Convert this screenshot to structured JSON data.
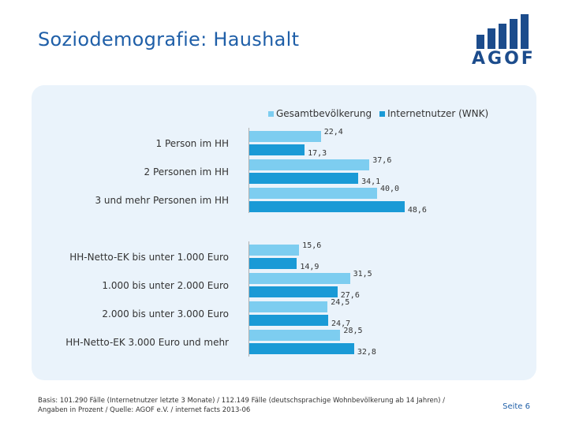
{
  "slide": {
    "title": "Soziodemografie: Haushalt",
    "logo_text": "AGOF",
    "footer": "Basis: 101.290 Fälle (Internetnutzer letzte 3 Monate) / 112.149 Fälle (deutschsprachige Wohnbevölkerung ab 14 Jahren) / Angaben in Prozent / Quelle: AGOF e.V. / internet facts 2013-06",
    "page_number": "Seite 6"
  },
  "colors": {
    "series_1": "#7dcdf0",
    "series_2": "#1a9ad6",
    "title": "#1f5fa8",
    "panel": "#eaf3fb"
  },
  "chart_data": {
    "type": "bar",
    "orientation": "horizontal",
    "title": "",
    "xlabel": "",
    "ylabel": "",
    "xlim": [
      0,
      50
    ],
    "legend_position": "top",
    "categories": [
      "1 Person im HH",
      "2 Personen im HH",
      "3 und mehr Personen im HH",
      "HH-Netto-EK bis unter 1.000 Euro",
      "1.000 bis unter 2.000 Euro",
      "2.000 bis unter 3.000 Euro",
      "HH-Netto-EK 3.000 Euro und mehr"
    ],
    "series": [
      {
        "name": "Gesamtbevölkerung",
        "values": [
          22.4,
          37.6,
          40.0,
          15.6,
          31.5,
          24.5,
          28.5
        ],
        "labels": [
          "22,4",
          "37,6",
          "40,0",
          "15,6",
          "31,5",
          "24,5",
          "28,5"
        ]
      },
      {
        "name": "Internetnutzer (WNK)",
        "values": [
          17.3,
          34.1,
          48.6,
          14.9,
          27.6,
          24.7,
          32.8
        ],
        "labels": [
          "17,3",
          "34,1",
          "48,6",
          "14,9",
          "27,6",
          "24,7",
          "32,8"
        ]
      }
    ]
  }
}
